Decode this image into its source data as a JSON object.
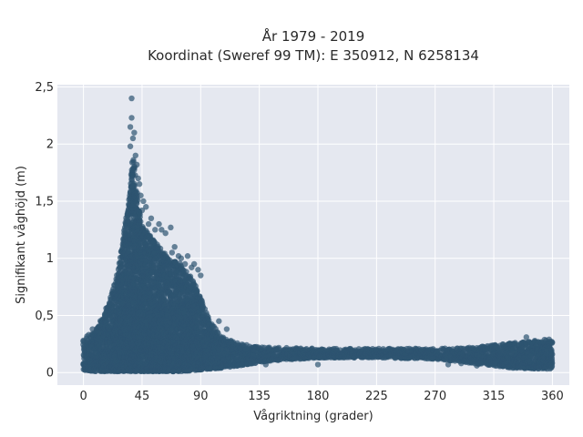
{
  "chart_data": {
    "type": "scatter",
    "title": "År 1979 - 2019",
    "subtitle": "Koordinat (Sweref 99 TM): E 350912, N 6258134",
    "xlabel": "Vågriktning (grader)",
    "ylabel": "Signifikant våghöjd (m)",
    "xlim": [
      -20,
      373
    ],
    "ylim": [
      -0.11,
      2.52
    ],
    "xticks": [
      0,
      45,
      90,
      135,
      180,
      225,
      270,
      315,
      360
    ],
    "xtick_labels": [
      "0",
      "45",
      "90",
      "135",
      "180",
      "225",
      "270",
      "315",
      "360"
    ],
    "yticks": [
      0,
      0.5,
      1,
      1.5,
      2,
      2.5
    ],
    "ytick_labels": [
      "0",
      "0,5",
      "1",
      "1,5",
      "2",
      "2,5"
    ],
    "grid": true,
    "marker_color": "#2e5470",
    "plot_background": "#e5e8f0",
    "envelope": [
      {
        "x": 0,
        "lower": 0.02,
        "upper": 0.3
      },
      {
        "x": 10,
        "lower": 0.01,
        "upper": 0.38
      },
      {
        "x": 20,
        "lower": 0.01,
        "upper": 0.62
      },
      {
        "x": 25,
        "lower": 0.01,
        "upper": 0.85
      },
      {
        "x": 30,
        "lower": 0.01,
        "upper": 1.15
      },
      {
        "x": 35,
        "lower": 0.01,
        "upper": 1.5
      },
      {
        "x": 38,
        "lower": 0.01,
        "upper": 1.95
      },
      {
        "x": 41,
        "lower": 0.01,
        "upper": 1.6
      },
      {
        "x": 45,
        "lower": 0.01,
        "upper": 1.28
      },
      {
        "x": 55,
        "lower": 0.01,
        "upper": 1.15
      },
      {
        "x": 65,
        "lower": 0.01,
        "upper": 1.0
      },
      {
        "x": 75,
        "lower": 0.01,
        "upper": 0.95
      },
      {
        "x": 85,
        "lower": 0.02,
        "upper": 0.8
      },
      {
        "x": 95,
        "lower": 0.03,
        "upper": 0.5
      },
      {
        "x": 105,
        "lower": 0.04,
        "upper": 0.32
      },
      {
        "x": 120,
        "lower": 0.06,
        "upper": 0.25
      },
      {
        "x": 140,
        "lower": 0.1,
        "upper": 0.22
      },
      {
        "x": 180,
        "lower": 0.13,
        "upper": 0.21
      },
      {
        "x": 225,
        "lower": 0.13,
        "upper": 0.21
      },
      {
        "x": 270,
        "lower": 0.12,
        "upper": 0.21
      },
      {
        "x": 300,
        "lower": 0.08,
        "upper": 0.22
      },
      {
        "x": 330,
        "lower": 0.04,
        "upper": 0.26
      },
      {
        "x": 360,
        "lower": 0.03,
        "upper": 0.3
      }
    ],
    "outliers": [
      {
        "x": 37,
        "y": 2.4
      },
      {
        "x": 37,
        "y": 2.23
      },
      {
        "x": 36,
        "y": 2.15
      },
      {
        "x": 39,
        "y": 2.1
      },
      {
        "x": 38,
        "y": 2.05
      },
      {
        "x": 36,
        "y": 1.98
      },
      {
        "x": 40,
        "y": 1.9
      },
      {
        "x": 41,
        "y": 1.82
      },
      {
        "x": 42,
        "y": 1.7
      },
      {
        "x": 43,
        "y": 1.65
      },
      {
        "x": 44,
        "y": 1.55
      },
      {
        "x": 46,
        "y": 1.5
      },
      {
        "x": 48,
        "y": 1.45
      },
      {
        "x": 45,
        "y": 1.42
      },
      {
        "x": 52,
        "y": 1.35
      },
      {
        "x": 50,
        "y": 1.3
      },
      {
        "x": 58,
        "y": 1.3
      },
      {
        "x": 55,
        "y": 1.25
      },
      {
        "x": 60,
        "y": 1.25
      },
      {
        "x": 67,
        "y": 1.27
      },
      {
        "x": 63,
        "y": 1.22
      },
      {
        "x": 70,
        "y": 1.1
      },
      {
        "x": 68,
        "y": 1.05
      },
      {
        "x": 73,
        "y": 1.02
      },
      {
        "x": 75,
        "y": 1.0
      },
      {
        "x": 80,
        "y": 1.02
      },
      {
        "x": 78,
        "y": 0.95
      },
      {
        "x": 85,
        "y": 0.95
      },
      {
        "x": 88,
        "y": 0.9
      },
      {
        "x": 83,
        "y": 0.92
      },
      {
        "x": 90,
        "y": 0.85
      },
      {
        "x": 7,
        "y": 0.38
      },
      {
        "x": 10,
        "y": 0.36
      },
      {
        "x": 104,
        "y": 0.45
      },
      {
        "x": 110,
        "y": 0.38
      },
      {
        "x": 340,
        "y": 0.31
      },
      {
        "x": 280,
        "y": 0.07
      },
      {
        "x": 290,
        "y": 0.08
      },
      {
        "x": 302,
        "y": 0.06
      },
      {
        "x": 316,
        "y": 0.08
      },
      {
        "x": 180,
        "y": 0.07
      },
      {
        "x": 140,
        "y": 0.07
      }
    ]
  }
}
